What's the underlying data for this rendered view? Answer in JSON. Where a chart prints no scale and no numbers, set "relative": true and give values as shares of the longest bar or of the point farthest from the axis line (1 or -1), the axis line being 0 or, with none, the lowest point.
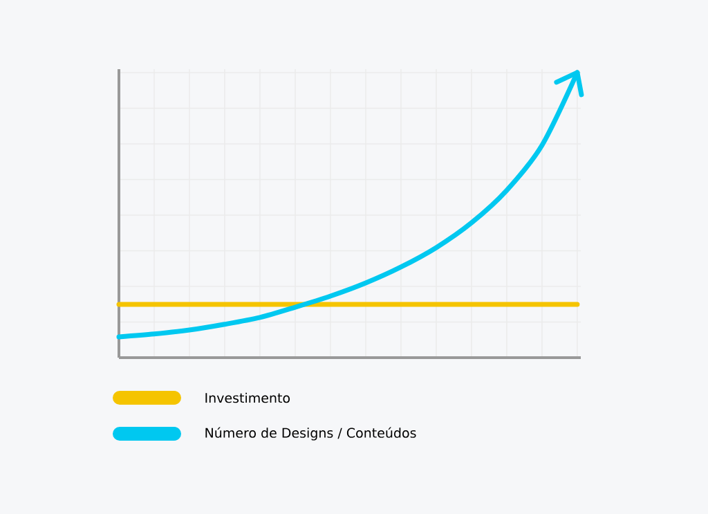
{
  "chart_data": {
    "type": "line",
    "relative": true,
    "categories": [
      null,
      null,
      null,
      null,
      null,
      null,
      null,
      null,
      null,
      null,
      null,
      null,
      null,
      null
    ],
    "series": [
      {
        "name": "Investimento",
        "color": "#f5c400",
        "values": [
          0.187,
          0.187,
          0.187,
          0.187,
          0.187,
          0.187,
          0.187,
          0.187,
          0.187,
          0.187,
          0.187,
          0.187,
          0.187,
          0.187
        ]
      },
      {
        "name": "Número de Designs / Conteúdos",
        "color": "#00c8f0",
        "values": [
          0.073,
          0.083,
          0.097,
          0.117,
          0.141,
          0.177,
          0.216,
          0.262,
          0.318,
          0.386,
          0.473,
          0.587,
          0.745,
          1
        ]
      }
    ],
    "grid": true,
    "legend": "bottom",
    "marker": "none",
    "line_style": "solid"
  }
}
